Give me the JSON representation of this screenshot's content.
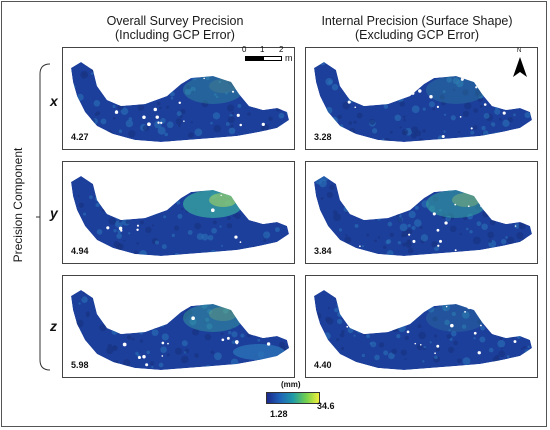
{
  "columns": [
    {
      "title_line1": "Overall Survey Precision",
      "title_line2": "(Including GCP Error)"
    },
    {
      "title_line1": "Internal Precision (Surface Shape)",
      "title_line2": "(Excluding GCP Error)"
    }
  ],
  "rows": [
    {
      "label": "x"
    },
    {
      "label": "y"
    },
    {
      "label": "z"
    }
  ],
  "y_axis_label": "Precision Component",
  "panel_values": [
    [
      "4.27",
      "3.28"
    ],
    [
      "4.94",
      "3.84"
    ],
    [
      "5.98",
      "4.40"
    ]
  ],
  "scale_bar": {
    "tick_0": "0",
    "tick_1": "1",
    "tick_2": "2",
    "unit": "m"
  },
  "north_label": "N",
  "colorbar": {
    "unit": "(mm)",
    "min": "1.28",
    "max": "34.6",
    "colors": [
      "#1b2a8c",
      "#1f63b8",
      "#1f9aa6",
      "#6fcf4e",
      "#f2f03a"
    ]
  },
  "palette": {
    "base": "#1d3f9c",
    "mid": "#2a72b8",
    "high": "#37a7a0",
    "hot": "#b8e05a"
  }
}
